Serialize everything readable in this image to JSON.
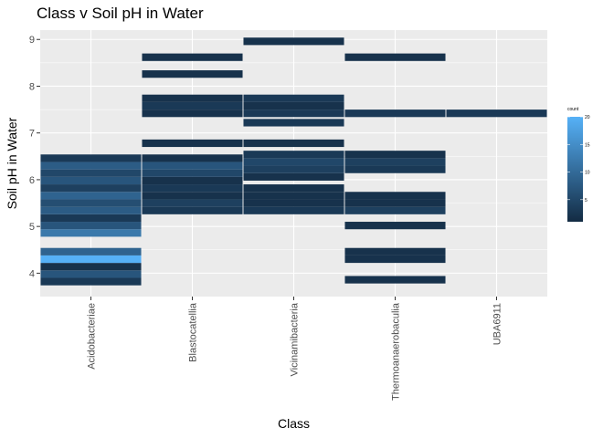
{
  "chart_data": {
    "type": "heatmap",
    "title": "Class v Soil pH in Water",
    "xlabel": "Class",
    "ylabel": "Soil pH in Water",
    "categories": [
      "Acidobacteriae",
      "Blastocatellia",
      "Vicinamibacteria",
      "Thermoanaerobaculia",
      "UBA6911"
    ],
    "y_ticks": [
      4,
      5,
      6,
      7,
      8,
      9
    ],
    "ylim": [
      3.5,
      9.2
    ],
    "bin_height": 0.16,
    "grid": true,
    "legend": {
      "title": "count",
      "ticks": [
        5,
        10,
        15,
        20
      ],
      "min": 1,
      "max": 20,
      "low_color": "#132b43",
      "high_color": "#56b1f7",
      "position": "right"
    },
    "colors": {
      "panel": "#ebebeb",
      "grid": "#ffffff"
    },
    "tiles": [
      {
        "x": "Acidobacteriae",
        "y": 3.82,
        "count": 3
      },
      {
        "x": "Acidobacteriae",
        "y": 3.98,
        "count": 7
      },
      {
        "x": "Acidobacteriae",
        "y": 4.14,
        "count": 2
      },
      {
        "x": "Acidobacteriae",
        "y": 4.3,
        "count": 20
      },
      {
        "x": "Acidobacteriae",
        "y": 4.46,
        "count": 9
      },
      {
        "x": "Acidobacteriae",
        "y": 4.86,
        "count": 12
      },
      {
        "x": "Acidobacteriae",
        "y": 5.02,
        "count": 7
      },
      {
        "x": "Acidobacteriae",
        "y": 5.18,
        "count": 3
      },
      {
        "x": "Acidobacteriae",
        "y": 5.34,
        "count": 8
      },
      {
        "x": "Acidobacteriae",
        "y": 5.5,
        "count": 6
      },
      {
        "x": "Acidobacteriae",
        "y": 5.66,
        "count": 9
      },
      {
        "x": "Acidobacteriae",
        "y": 5.82,
        "count": 4
      },
      {
        "x": "Acidobacteriae",
        "y": 5.98,
        "count": 7
      },
      {
        "x": "Acidobacteriae",
        "y": 6.14,
        "count": 5
      },
      {
        "x": "Acidobacteriae",
        "y": 6.3,
        "count": 8
      },
      {
        "x": "Acidobacteriae",
        "y": 6.46,
        "count": 3
      },
      {
        "x": "Blastocatellia",
        "y": 5.34,
        "count": 3
      },
      {
        "x": "Blastocatellia",
        "y": 5.5,
        "count": 4
      },
      {
        "x": "Blastocatellia",
        "y": 5.66,
        "count": 2
      },
      {
        "x": "Blastocatellia",
        "y": 5.82,
        "count": 3
      },
      {
        "x": "Blastocatellia",
        "y": 5.98,
        "count": 2
      },
      {
        "x": "Blastocatellia",
        "y": 6.14,
        "count": 5
      },
      {
        "x": "Blastocatellia",
        "y": 6.3,
        "count": 7
      },
      {
        "x": "Blastocatellia",
        "y": 6.46,
        "count": 2
      },
      {
        "x": "Blastocatellia",
        "y": 6.78,
        "count": 2
      },
      {
        "x": "Blastocatellia",
        "y": 7.42,
        "count": 2
      },
      {
        "x": "Blastocatellia",
        "y": 7.58,
        "count": 3
      },
      {
        "x": "Blastocatellia",
        "y": 7.74,
        "count": 2
      },
      {
        "x": "Blastocatellia",
        "y": 8.26,
        "count": 2
      },
      {
        "x": "Blastocatellia",
        "y": 8.62,
        "count": 2
      },
      {
        "x": "Vicinamibacteria",
        "y": 5.34,
        "count": 3
      },
      {
        "x": "Vicinamibacteria",
        "y": 5.5,
        "count": 2
      },
      {
        "x": "Vicinamibacteria",
        "y": 5.66,
        "count": 2
      },
      {
        "x": "Vicinamibacteria",
        "y": 5.82,
        "count": 2
      },
      {
        "x": "Vicinamibacteria",
        "y": 6.06,
        "count": 2
      },
      {
        "x": "Vicinamibacteria",
        "y": 6.22,
        "count": 4
      },
      {
        "x": "Vicinamibacteria",
        "y": 6.38,
        "count": 5
      },
      {
        "x": "Vicinamibacteria",
        "y": 6.54,
        "count": 3
      },
      {
        "x": "Vicinamibacteria",
        "y": 6.78,
        "count": 2
      },
      {
        "x": "Vicinamibacteria",
        "y": 7.22,
        "count": 3
      },
      {
        "x": "Vicinamibacteria",
        "y": 7.42,
        "count": 3
      },
      {
        "x": "Vicinamibacteria",
        "y": 7.58,
        "count": 2
      },
      {
        "x": "Vicinamibacteria",
        "y": 7.74,
        "count": 3
      },
      {
        "x": "Vicinamibacteria",
        "y": 8.96,
        "count": 2
      },
      {
        "x": "Thermoanaerobaculia",
        "y": 3.86,
        "count": 2
      },
      {
        "x": "Thermoanaerobaculia",
        "y": 4.3,
        "count": 2
      },
      {
        "x": "Thermoanaerobaculia",
        "y": 4.46,
        "count": 2
      },
      {
        "x": "Thermoanaerobaculia",
        "y": 5.02,
        "count": 2
      },
      {
        "x": "Thermoanaerobaculia",
        "y": 5.34,
        "count": 4
      },
      {
        "x": "Thermoanaerobaculia",
        "y": 5.5,
        "count": 2
      },
      {
        "x": "Thermoanaerobaculia",
        "y": 5.66,
        "count": 2
      },
      {
        "x": "Thermoanaerobaculia",
        "y": 6.22,
        "count": 3
      },
      {
        "x": "Thermoanaerobaculia",
        "y": 6.38,
        "count": 4
      },
      {
        "x": "Thermoanaerobaculia",
        "y": 6.54,
        "count": 2
      },
      {
        "x": "Thermoanaerobaculia",
        "y": 7.42,
        "count": 3
      },
      {
        "x": "Thermoanaerobaculia",
        "y": 8.62,
        "count": 2
      },
      {
        "x": "UBA6911",
        "y": 7.42,
        "count": 3
      }
    ]
  }
}
